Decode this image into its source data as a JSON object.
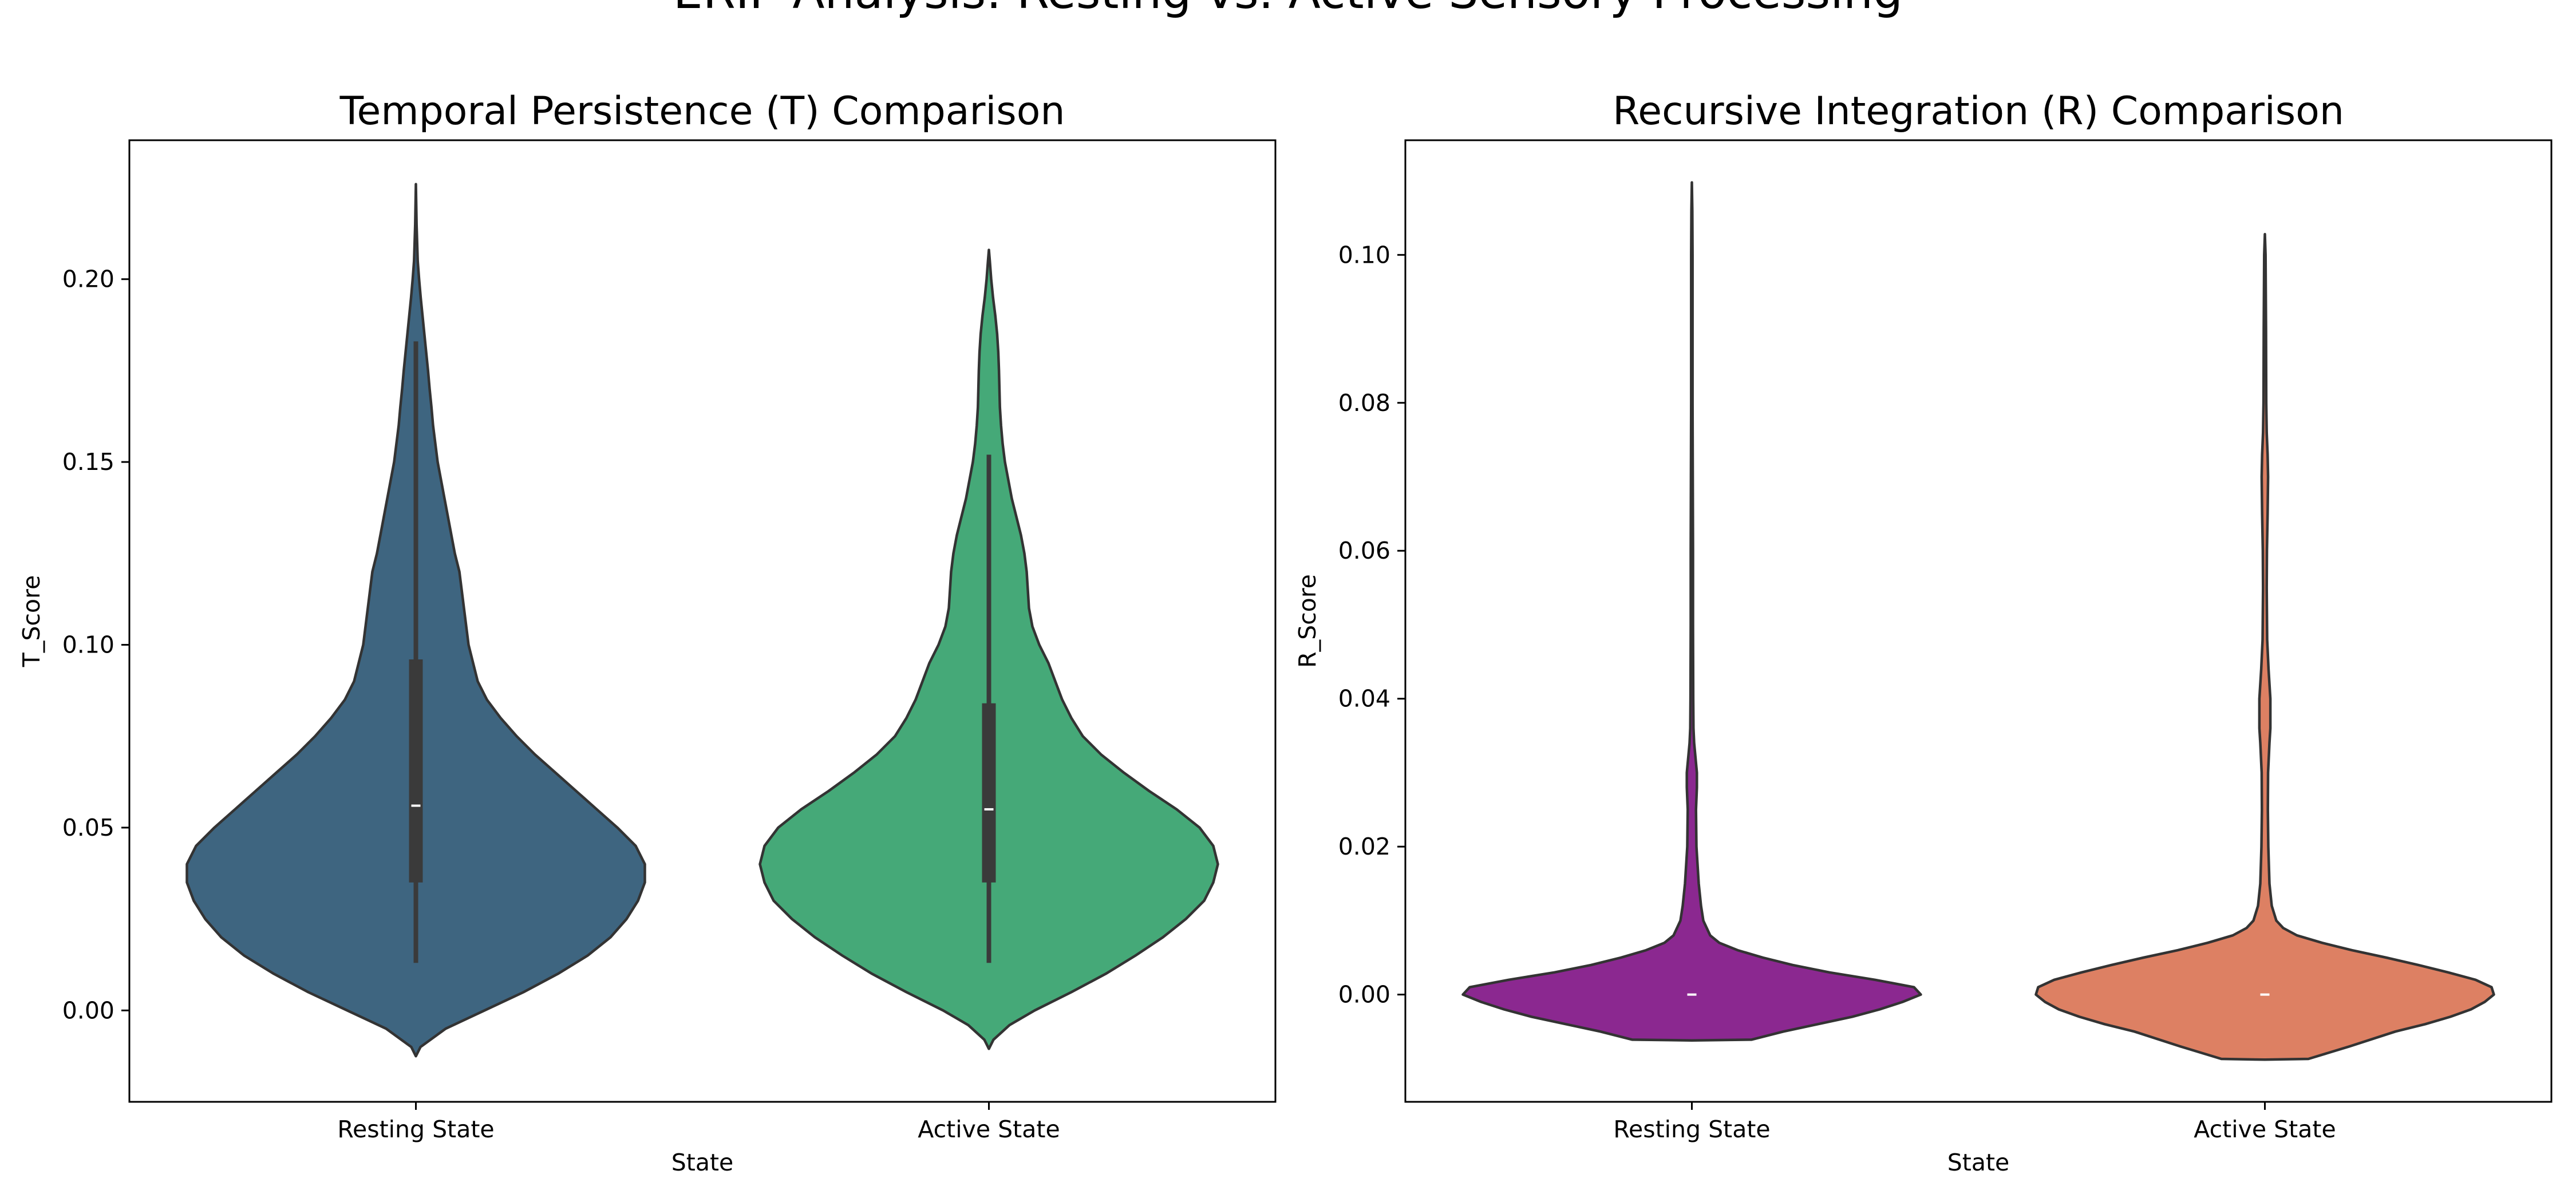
{
  "figure": {
    "suptitle": "ERIP Analysis: Resting vs. Active Sensory Processing"
  },
  "chart_data": [
    {
      "type": "violin",
      "title": "Temporal Persistence (T) Comparison",
      "xlabel": "State",
      "ylabel": "T_Score",
      "categories": [
        "Resting State",
        "Active State"
      ],
      "ylim": [
        -0.025,
        0.238
      ],
      "yticks": [
        0.0,
        0.05,
        0.1,
        0.15,
        0.2
      ],
      "ytick_labels": [
        "0.00",
        "0.05",
        "0.10",
        "0.15",
        "0.20"
      ],
      "grid": false,
      "series": [
        {
          "category": "Resting State",
          "color": "#3e6580",
          "median": 0.056,
          "q1": 0.035,
          "q3": 0.096,
          "whisker_low": 0.013,
          "whisker_high": 0.183,
          "profile": [
            [
              -0.0125,
              0.0
            ],
            [
              -0.01,
              0.02
            ],
            [
              -0.005,
              0.13
            ],
            [
              0.0,
              0.3
            ],
            [
              0.005,
              0.47
            ],
            [
              0.01,
              0.62
            ],
            [
              0.015,
              0.75
            ],
            [
              0.02,
              0.85
            ],
            [
              0.025,
              0.92
            ],
            [
              0.03,
              0.97
            ],
            [
              0.035,
              1.0
            ],
            [
              0.04,
              1.0
            ],
            [
              0.045,
              0.96
            ],
            [
              0.05,
              0.88
            ],
            [
              0.055,
              0.79
            ],
            [
              0.06,
              0.7
            ],
            [
              0.065,
              0.61
            ],
            [
              0.07,
              0.52
            ],
            [
              0.075,
              0.44
            ],
            [
              0.08,
              0.37
            ],
            [
              0.085,
              0.31
            ],
            [
              0.09,
              0.27
            ],
            [
              0.095,
              0.25
            ],
            [
              0.1,
              0.23
            ],
            [
              0.105,
              0.22
            ],
            [
              0.11,
              0.21
            ],
            [
              0.115,
              0.2
            ],
            [
              0.12,
              0.19
            ],
            [
              0.125,
              0.17
            ],
            [
              0.13,
              0.155
            ],
            [
              0.135,
              0.14
            ],
            [
              0.14,
              0.125
            ],
            [
              0.145,
              0.11
            ],
            [
              0.15,
              0.095
            ],
            [
              0.155,
              0.085
            ],
            [
              0.16,
              0.075
            ],
            [
              0.165,
              0.068
            ],
            [
              0.17,
              0.06
            ],
            [
              0.175,
              0.053
            ],
            [
              0.18,
              0.045
            ],
            [
              0.185,
              0.037
            ],
            [
              0.19,
              0.029
            ],
            [
              0.195,
              0.021
            ],
            [
              0.2,
              0.014
            ],
            [
              0.205,
              0.008
            ],
            [
              0.215,
              0.003
            ],
            [
              0.226,
              0.0
            ]
          ]
        },
        {
          "category": "Active State",
          "color": "#45a978",
          "median": 0.055,
          "q1": 0.035,
          "q3": 0.084,
          "whisker_low": 0.013,
          "whisker_high": 0.152,
          "profile": [
            [
              -0.0105,
              0.0
            ],
            [
              -0.008,
              0.02
            ],
            [
              -0.004,
              0.09
            ],
            [
              0.0,
              0.2
            ],
            [
              0.005,
              0.36
            ],
            [
              0.01,
              0.51
            ],
            [
              0.015,
              0.64
            ],
            [
              0.02,
              0.76
            ],
            [
              0.025,
              0.86
            ],
            [
              0.03,
              0.94
            ],
            [
              0.035,
              0.98
            ],
            [
              0.04,
              1.0
            ],
            [
              0.045,
              0.98
            ],
            [
              0.05,
              0.92
            ],
            [
              0.055,
              0.82
            ],
            [
              0.06,
              0.7
            ],
            [
              0.065,
              0.59
            ],
            [
              0.07,
              0.49
            ],
            [
              0.075,
              0.41
            ],
            [
              0.08,
              0.36
            ],
            [
              0.085,
              0.32
            ],
            [
              0.09,
              0.29
            ],
            [
              0.095,
              0.26
            ],
            [
              0.1,
              0.22
            ],
            [
              0.105,
              0.19
            ],
            [
              0.11,
              0.175
            ],
            [
              0.115,
              0.17
            ],
            [
              0.12,
              0.165
            ],
            [
              0.125,
              0.155
            ],
            [
              0.13,
              0.14
            ],
            [
              0.135,
              0.12
            ],
            [
              0.14,
              0.1
            ],
            [
              0.145,
              0.085
            ],
            [
              0.15,
              0.07
            ],
            [
              0.155,
              0.06
            ],
            [
              0.16,
              0.053
            ],
            [
              0.165,
              0.048
            ],
            [
              0.17,
              0.046
            ],
            [
              0.175,
              0.044
            ],
            [
              0.18,
              0.041
            ],
            [
              0.185,
              0.036
            ],
            [
              0.19,
              0.028
            ],
            [
              0.195,
              0.018
            ],
            [
              0.2,
              0.01
            ],
            [
              0.205,
              0.004
            ],
            [
              0.208,
              0.0
            ]
          ]
        }
      ]
    },
    {
      "type": "violin",
      "title": "Recursive Integration (R) Comparison",
      "xlabel": "State",
      "ylabel": "R_Score",
      "categories": [
        "Resting State",
        "Active State"
      ],
      "ylim": [
        -0.0145,
        0.1155
      ],
      "yticks": [
        0.0,
        0.02,
        0.04,
        0.06,
        0.08,
        0.1
      ],
      "ytick_labels": [
        "0.00",
        "0.02",
        "0.04",
        "0.06",
        "0.08",
        "0.10"
      ],
      "grid": false,
      "series": [
        {
          "category": "Resting State",
          "color": "#8b2890",
          "median": 0.0,
          "q1": 0.0,
          "q3": 0.0,
          "profile": [
            [
              -0.0062,
              0.0
            ],
            [
              -0.0061,
              0.26
            ],
            [
              -0.005,
              0.4
            ],
            [
              -0.004,
              0.55
            ],
            [
              -0.003,
              0.7
            ],
            [
              -0.002,
              0.82
            ],
            [
              -0.001,
              0.92
            ],
            [
              0.0,
              1.0
            ],
            [
              0.001,
              0.97
            ],
            [
              0.002,
              0.8
            ],
            [
              0.003,
              0.6
            ],
            [
              0.004,
              0.44
            ],
            [
              0.005,
              0.31
            ],
            [
              0.006,
              0.2
            ],
            [
              0.007,
              0.12
            ],
            [
              0.008,
              0.08
            ],
            [
              0.01,
              0.05
            ],
            [
              0.012,
              0.04
            ],
            [
              0.015,
              0.03
            ],
            [
              0.02,
              0.02
            ],
            [
              0.025,
              0.018
            ],
            [
              0.028,
              0.022
            ],
            [
              0.03,
              0.022
            ],
            [
              0.032,
              0.016
            ],
            [
              0.034,
              0.01
            ],
            [
              0.036,
              0.007
            ],
            [
              0.04,
              0.006
            ],
            [
              0.05,
              0.005
            ],
            [
              0.06,
              0.005
            ],
            [
              0.07,
              0.004
            ],
            [
              0.08,
              0.003
            ],
            [
              0.09,
              0.003
            ],
            [
              0.1,
              0.003
            ],
            [
              0.106,
              0.002
            ],
            [
              0.1098,
              0.0
            ]
          ]
        },
        {
          "category": "Active State",
          "color": "#dd8063",
          "median": 0.0,
          "q1": 0.0,
          "q3": 0.0,
          "profile": [
            [
              -0.0088,
              0.0
            ],
            [
              -0.0087,
              0.19
            ],
            [
              -0.007,
              0.37
            ],
            [
              -0.005,
              0.57
            ],
            [
              -0.004,
              0.7
            ],
            [
              -0.003,
              0.81
            ],
            [
              -0.002,
              0.9
            ],
            [
              -0.001,
              0.96
            ],
            [
              0.0,
              1.0
            ],
            [
              0.001,
              0.99
            ],
            [
              0.002,
              0.92
            ],
            [
              0.003,
              0.8
            ],
            [
              0.004,
              0.67
            ],
            [
              0.005,
              0.53
            ],
            [
              0.006,
              0.38
            ],
            [
              0.007,
              0.25
            ],
            [
              0.008,
              0.14
            ],
            [
              0.009,
              0.08
            ],
            [
              0.01,
              0.05
            ],
            [
              0.012,
              0.03
            ],
            [
              0.015,
              0.02
            ],
            [
              0.02,
              0.015
            ],
            [
              0.025,
              0.013
            ],
            [
              0.03,
              0.014
            ],
            [
              0.034,
              0.02
            ],
            [
              0.036,
              0.024
            ],
            [
              0.04,
              0.024
            ],
            [
              0.044,
              0.016
            ],
            [
              0.048,
              0.01
            ],
            [
              0.055,
              0.008
            ],
            [
              0.06,
              0.009
            ],
            [
              0.065,
              0.012
            ],
            [
              0.07,
              0.014
            ],
            [
              0.073,
              0.012
            ],
            [
              0.076,
              0.008
            ],
            [
              0.08,
              0.006
            ],
            [
              0.09,
              0.005
            ],
            [
              0.1,
              0.003
            ],
            [
              0.1028,
              0.0
            ]
          ]
        }
      ]
    }
  ]
}
